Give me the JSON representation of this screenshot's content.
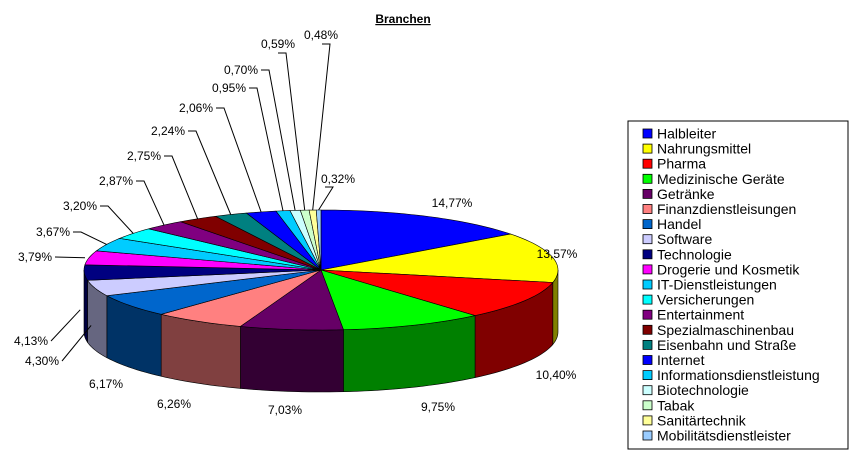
{
  "chart_data": {
    "type": "pie",
    "title": "Branchen",
    "start_angle_deg": 90,
    "direction": "clockwise",
    "legend_position": "right",
    "series": [
      {
        "label": "Halbleiter",
        "value": 14.77,
        "value_label": "14,77%",
        "color": "#0000ff"
      },
      {
        "label": "Nahrungsmittel",
        "value": 13.57,
        "value_label": "13,57%",
        "color": "#ffff00"
      },
      {
        "label": "Pharma",
        "value": 10.4,
        "value_label": "10,40%",
        "color": "#ff0000"
      },
      {
        "label": "Medizinische Geräte",
        "value": 9.75,
        "value_label": "9,75%",
        "color": "#00ff00"
      },
      {
        "label": "Getränke",
        "value": 7.03,
        "value_label": "7,03%",
        "color": "#660066"
      },
      {
        "label": "Finanzdienstleisungen",
        "value": 6.26,
        "value_label": "6,26%",
        "color": "#ff8080"
      },
      {
        "label": "Handel",
        "value": 6.17,
        "value_label": "6,17%",
        "color": "#0066cc"
      },
      {
        "label": "Software",
        "value": 4.3,
        "value_label": "4,30%",
        "color": "#ccccff"
      },
      {
        "label": "Technologie",
        "value": 4.13,
        "value_label": "4,13%",
        "color": "#000080"
      },
      {
        "label": "Drogerie und Kosmetik",
        "value": 3.79,
        "value_label": "3,79%",
        "color": "#ff00ff"
      },
      {
        "label": "IT-Dienstleistungen",
        "value": 3.67,
        "value_label": "3,67%",
        "color": "#00ccff"
      },
      {
        "label": "Versicherungen",
        "value": 3.2,
        "value_label": "3,20%",
        "color": "#00ffff"
      },
      {
        "label": "Entertainment",
        "value": 2.87,
        "value_label": "2,87%",
        "color": "#800080"
      },
      {
        "label": "Spezialmaschinenbau",
        "value": 2.75,
        "value_label": "2,75%",
        "color": "#800000"
      },
      {
        "label": "Eisenbahn und Straße",
        "value": 2.24,
        "value_label": "2,24%",
        "color": "#008080"
      },
      {
        "label": "Internet",
        "value": 2.06,
        "value_label": "2,06%",
        "color": "#0000ff"
      },
      {
        "label": "Informationsdienstleistung",
        "value": 0.95,
        "value_label": "0,95%",
        "color": "#00ccff"
      },
      {
        "label": "Biotechnologie",
        "value": 0.7,
        "value_label": "0,70%",
        "color": "#ccffff"
      },
      {
        "label": "Tabak",
        "value": 0.59,
        "value_label": "0,59%",
        "color": "#ccffcc"
      },
      {
        "label": "Sanitärtechnik",
        "value": 0.48,
        "value_label": "0,48%",
        "color": "#ffff99"
      },
      {
        "label": "Mobilitätsdienstleister",
        "value": 0.32,
        "value_label": "0,32%",
        "color": "#99ccff"
      }
    ]
  }
}
